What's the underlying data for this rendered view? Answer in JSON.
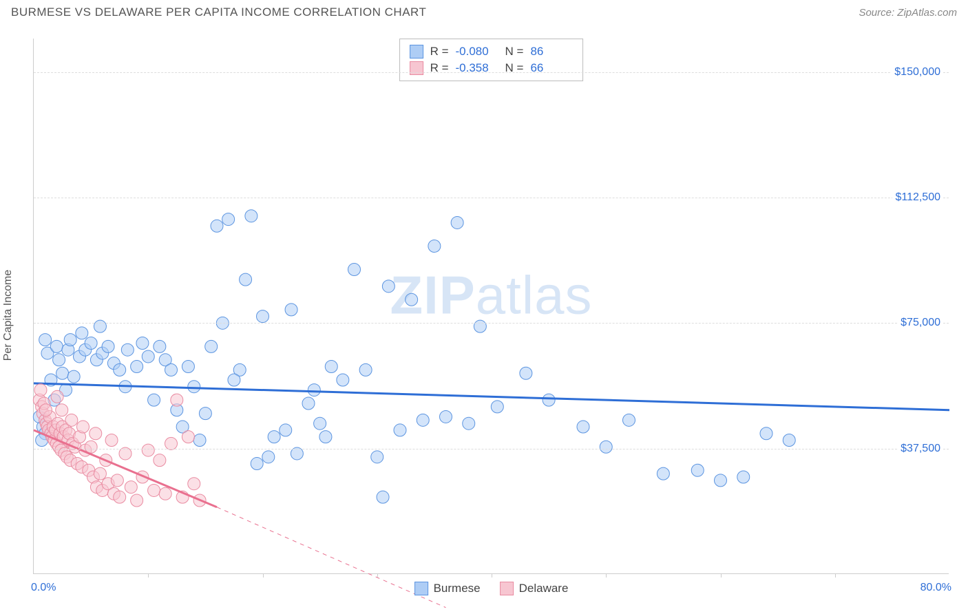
{
  "header": {
    "title": "BURMESE VS DELAWARE PER CAPITA INCOME CORRELATION CHART",
    "source": "Source: ZipAtlas.com"
  },
  "watermark": {
    "zip": "ZIP",
    "atlas": "atlas"
  },
  "chart": {
    "type": "scatter",
    "ylabel": "Per Capita Income",
    "xlim": [
      0,
      80
    ],
    "ylim": [
      0,
      160000
    ],
    "xaxis_min_label": "0.0%",
    "xaxis_max_label": "80.0%",
    "xtick_positions": [
      10,
      20,
      30,
      40,
      50,
      60,
      70
    ],
    "yticks": [
      {
        "value": 37500,
        "label": "$37,500"
      },
      {
        "value": 75000,
        "label": "$75,000"
      },
      {
        "value": 112500,
        "label": "$112,500"
      },
      {
        "value": 150000,
        "label": "$150,000"
      }
    ],
    "background_color": "#ffffff",
    "grid_color": "#dddddd",
    "axis_color": "#cccccc",
    "tick_label_color": "#2e6ed6",
    "marker_radius": 9,
    "marker_opacity": 0.55,
    "trend_line_width": 3,
    "trend_dash_width": 1,
    "series": [
      {
        "name": "Burmese",
        "fill_color": "#aecdf5",
        "stroke_color": "#5b94e0",
        "line_color": "#2e6ed6",
        "trend": {
          "x1": 0,
          "y1": 57000,
          "x2": 80,
          "y2": 49000
        },
        "dash": null,
        "stats": {
          "R": "-0.080",
          "N": "86"
        },
        "points": [
          [
            1.0,
            70000
          ],
          [
            1.2,
            66000
          ],
          [
            1.5,
            58000
          ],
          [
            0.8,
            44000
          ],
          [
            1.0,
            42000
          ],
          [
            2.0,
            68000
          ],
          [
            2.2,
            64000
          ],
          [
            2.5,
            60000
          ],
          [
            3.0,
            67000
          ],
          [
            3.2,
            70000
          ],
          [
            0.5,
            47000
          ],
          [
            0.7,
            40000
          ],
          [
            4.0,
            65000
          ],
          [
            4.5,
            67000
          ],
          [
            5.0,
            69000
          ],
          [
            5.5,
            64000
          ],
          [
            6.0,
            66000
          ],
          [
            6.5,
            68000
          ],
          [
            7.0,
            63000
          ],
          [
            7.5,
            61000
          ],
          [
            8.0,
            56000
          ],
          [
            8.2,
            67000
          ],
          [
            9.0,
            62000
          ],
          [
            9.5,
            69000
          ],
          [
            10.0,
            65000
          ],
          [
            10.5,
            52000
          ],
          [
            11.0,
            68000
          ],
          [
            11.5,
            64000
          ],
          [
            12.0,
            61000
          ],
          [
            12.5,
            49000
          ],
          [
            13.0,
            44000
          ],
          [
            14.0,
            56000
          ],
          [
            14.5,
            40000
          ],
          [
            15.0,
            48000
          ],
          [
            15.5,
            68000
          ],
          [
            16.0,
            104000
          ],
          [
            17.0,
            106000
          ],
          [
            18.0,
            61000
          ],
          [
            18.5,
            88000
          ],
          [
            19.0,
            107000
          ],
          [
            16.5,
            75000
          ],
          [
            20.0,
            77000
          ],
          [
            20.5,
            35000
          ],
          [
            21.0,
            41000
          ],
          [
            22.0,
            43000
          ],
          [
            22.5,
            79000
          ],
          [
            23.0,
            36000
          ],
          [
            24.0,
            51000
          ],
          [
            24.5,
            55000
          ],
          [
            25.0,
            45000
          ],
          [
            25.5,
            41000
          ],
          [
            26.0,
            62000
          ],
          [
            27.0,
            58000
          ],
          [
            28.0,
            91000
          ],
          [
            29.0,
            61000
          ],
          [
            30.0,
            35000
          ],
          [
            30.5,
            23000
          ],
          [
            31.0,
            86000
          ],
          [
            32.0,
            43000
          ],
          [
            33.0,
            82000
          ],
          [
            34.0,
            46000
          ],
          [
            35.0,
            98000
          ],
          [
            36.0,
            47000
          ],
          [
            37.0,
            105000
          ],
          [
            38.0,
            45000
          ],
          [
            39.0,
            74000
          ],
          [
            1.8,
            52000
          ],
          [
            2.8,
            55000
          ],
          [
            3.5,
            59000
          ],
          [
            4.2,
            72000
          ],
          [
            52.0,
            46000
          ],
          [
            55.0,
            30000
          ],
          [
            58.0,
            31000
          ],
          [
            60.0,
            28000
          ],
          [
            62.0,
            29000
          ],
          [
            64.0,
            42000
          ],
          [
            66.0,
            40000
          ],
          [
            50.0,
            38000
          ],
          [
            48.0,
            44000
          ],
          [
            45.0,
            52000
          ],
          [
            43.0,
            60000
          ],
          [
            40.5,
            50000
          ],
          [
            13.5,
            62000
          ],
          [
            19.5,
            33000
          ],
          [
            17.5,
            58000
          ],
          [
            5.8,
            74000
          ]
        ]
      },
      {
        "name": "Delaware",
        "fill_color": "#f7c6d1",
        "stroke_color": "#e98ba1",
        "line_color": "#e9708f",
        "trend": {
          "x1": 0,
          "y1": 43000,
          "x2": 16,
          "y2": 20000
        },
        "dash": {
          "x1": 16,
          "y1": 20000,
          "x2": 36,
          "y2": -10000
        },
        "stats": {
          "R": "-0.358",
          "N": "66"
        },
        "points": [
          [
            0.5,
            52000
          ],
          [
            0.7,
            50000
          ],
          [
            0.8,
            48000
          ],
          [
            1.0,
            46000
          ],
          [
            1.1,
            45000
          ],
          [
            1.2,
            44000
          ],
          [
            1.3,
            43000
          ],
          [
            1.4,
            47000
          ],
          [
            1.5,
            42000
          ],
          [
            1.6,
            41000
          ],
          [
            1.7,
            44000
          ],
          [
            1.8,
            40000
          ],
          [
            1.9,
            43000
          ],
          [
            2.0,
            39000
          ],
          [
            2.1,
            45000
          ],
          [
            2.2,
            38000
          ],
          [
            2.3,
            42000
          ],
          [
            2.4,
            37000
          ],
          [
            2.5,
            44000
          ],
          [
            2.6,
            41000
          ],
          [
            2.7,
            36000
          ],
          [
            2.8,
            43000
          ],
          [
            2.9,
            35000
          ],
          [
            3.0,
            40000
          ],
          [
            3.1,
            42000
          ],
          [
            3.2,
            34000
          ],
          [
            3.4,
            39000
          ],
          [
            3.6,
            38000
          ],
          [
            3.8,
            33000
          ],
          [
            4.0,
            41000
          ],
          [
            4.2,
            32000
          ],
          [
            4.5,
            37000
          ],
          [
            4.8,
            31000
          ],
          [
            5.0,
            38000
          ],
          [
            5.2,
            29000
          ],
          [
            5.5,
            26000
          ],
          [
            5.8,
            30000
          ],
          [
            6.0,
            25000
          ],
          [
            6.3,
            34000
          ],
          [
            6.5,
            27000
          ],
          [
            7.0,
            24000
          ],
          [
            7.3,
            28000
          ],
          [
            7.5,
            23000
          ],
          [
            8.0,
            36000
          ],
          [
            8.5,
            26000
          ],
          [
            9.0,
            22000
          ],
          [
            9.5,
            29000
          ],
          [
            10.0,
            37000
          ],
          [
            10.5,
            25000
          ],
          [
            11.0,
            34000
          ],
          [
            11.5,
            24000
          ],
          [
            12.0,
            39000
          ],
          [
            12.5,
            52000
          ],
          [
            13.0,
            23000
          ],
          [
            13.5,
            41000
          ],
          [
            14.0,
            27000
          ],
          [
            14.5,
            22000
          ],
          [
            0.6,
            55000
          ],
          [
            0.9,
            51000
          ],
          [
            1.05,
            49000
          ],
          [
            3.3,
            46000
          ],
          [
            4.3,
            44000
          ],
          [
            2.05,
            53000
          ],
          [
            2.45,
            49000
          ],
          [
            5.4,
            42000
          ],
          [
            6.8,
            40000
          ]
        ]
      }
    ]
  },
  "legend": {
    "items": [
      {
        "label": "Burmese",
        "fill": "#aecdf5",
        "stroke": "#5b94e0"
      },
      {
        "label": "Delaware",
        "fill": "#f7c6d1",
        "stroke": "#e98ba1"
      }
    ]
  }
}
